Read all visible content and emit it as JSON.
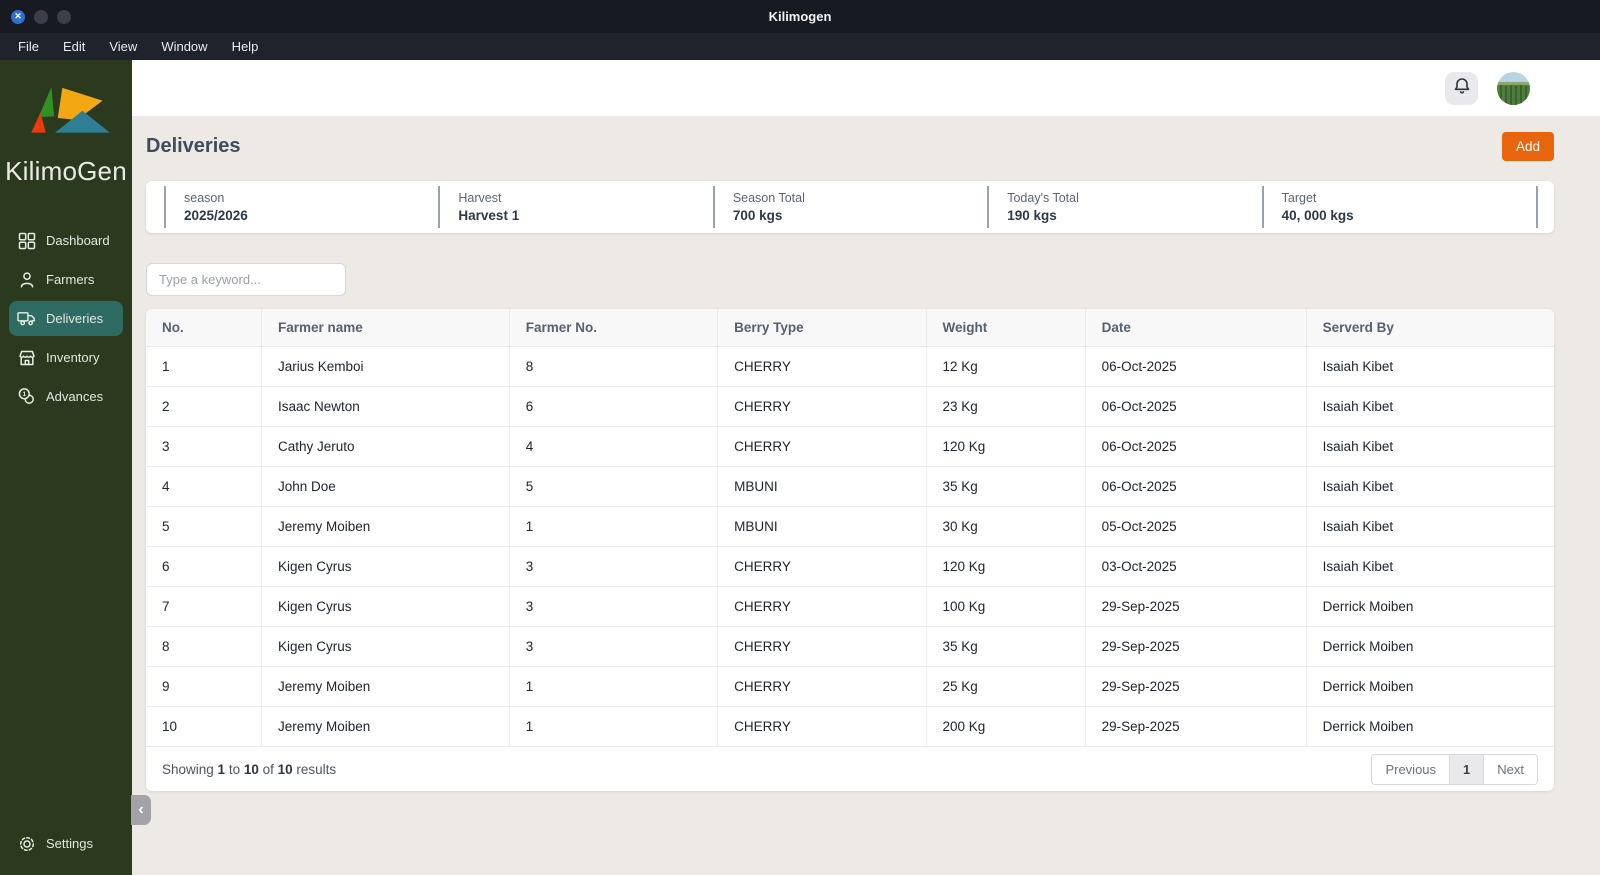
{
  "titlebar": {
    "title": "Kilimogen"
  },
  "menubar": {
    "items": [
      "File",
      "Edit",
      "View",
      "Window",
      "Help"
    ]
  },
  "sidebar": {
    "brand": "KilimoGen",
    "items": [
      {
        "label": "Dashboard",
        "icon": "dashboard-grid-icon",
        "active": false
      },
      {
        "label": "Farmers",
        "icon": "person-icon",
        "active": false
      },
      {
        "label": "Deliveries",
        "icon": "truck-icon",
        "active": true
      },
      {
        "label": "Inventory",
        "icon": "store-icon",
        "active": false
      },
      {
        "label": "Advances",
        "icon": "coins-icon",
        "active": false
      }
    ],
    "settings_label": "Settings",
    "collapse_glyph": "‹"
  },
  "header": {
    "icons": [
      "bell-icon",
      "user-avatar"
    ]
  },
  "page": {
    "title": "Deliveries",
    "add_button_label": "Add",
    "stats": [
      {
        "label": "season",
        "value": "2025/2026"
      },
      {
        "label": "Harvest",
        "value": "Harvest 1"
      },
      {
        "label": "Season Total",
        "value": "700 kgs"
      },
      {
        "label": "Today's Total",
        "value": "190 kgs"
      },
      {
        "label": "Target",
        "value": "40, 000 kgs"
      }
    ],
    "search_placeholder": "Type a keyword...",
    "table": {
      "columns": [
        "No.",
        "Farmer name",
        "Farmer No.",
        "Berry Type",
        "Weight",
        "Date",
        "Serverd By"
      ],
      "rows": [
        [
          "1",
          "Jarius Kemboi",
          "8",
          "CHERRY",
          "12 Kg",
          "06-Oct-2025",
          "Isaiah Kibet"
        ],
        [
          "2",
          "Isaac Newton",
          "6",
          "CHERRY",
          "23 Kg",
          "06-Oct-2025",
          "Isaiah Kibet"
        ],
        [
          "3",
          "Cathy Jeruto",
          "4",
          "CHERRY",
          "120 Kg",
          "06-Oct-2025",
          "Isaiah Kibet"
        ],
        [
          "4",
          "John Doe",
          "5",
          "MBUNI",
          "35 Kg",
          "06-Oct-2025",
          "Isaiah Kibet"
        ],
        [
          "5",
          "Jeremy Moiben",
          "1",
          "MBUNI",
          "30 Kg",
          "05-Oct-2025",
          "Isaiah Kibet"
        ],
        [
          "6",
          "Kigen Cyrus",
          "3",
          "CHERRY",
          "120 Kg",
          "03-Oct-2025",
          "Isaiah Kibet"
        ],
        [
          "7",
          "Kigen Cyrus",
          "3",
          "CHERRY",
          "100 Kg",
          "29-Sep-2025",
          "Derrick Moiben"
        ],
        [
          "8",
          "Kigen Cyrus",
          "3",
          "CHERRY",
          "35 Kg",
          "29-Sep-2025",
          "Derrick Moiben"
        ],
        [
          "9",
          "Jeremy Moiben",
          "1",
          "CHERRY",
          "25 Kg",
          "29-Sep-2025",
          "Derrick Moiben"
        ],
        [
          "10",
          "Jeremy Moiben",
          "1",
          "CHERRY",
          "200 Kg",
          "29-Sep-2025",
          "Derrick Moiben"
        ]
      ]
    },
    "results_summary": {
      "parts": [
        "Showing ",
        "1",
        " to ",
        "10",
        " of ",
        "10",
        " results"
      ]
    },
    "pagination": {
      "previous": "Previous",
      "current_page": "1",
      "next": "Next"
    }
  },
  "colors": {
    "accent_orange": "#e8650e",
    "active_nav_teal": "#2e6c63",
    "sidebar_green": "#2b3a1f",
    "titlebar": "#171a21",
    "content_background": "#edeae5",
    "logo": {
      "green": "#2f9023",
      "amber": "#f3a712",
      "red": "#ea3b0c",
      "teal": "#2e7f96"
    }
  }
}
